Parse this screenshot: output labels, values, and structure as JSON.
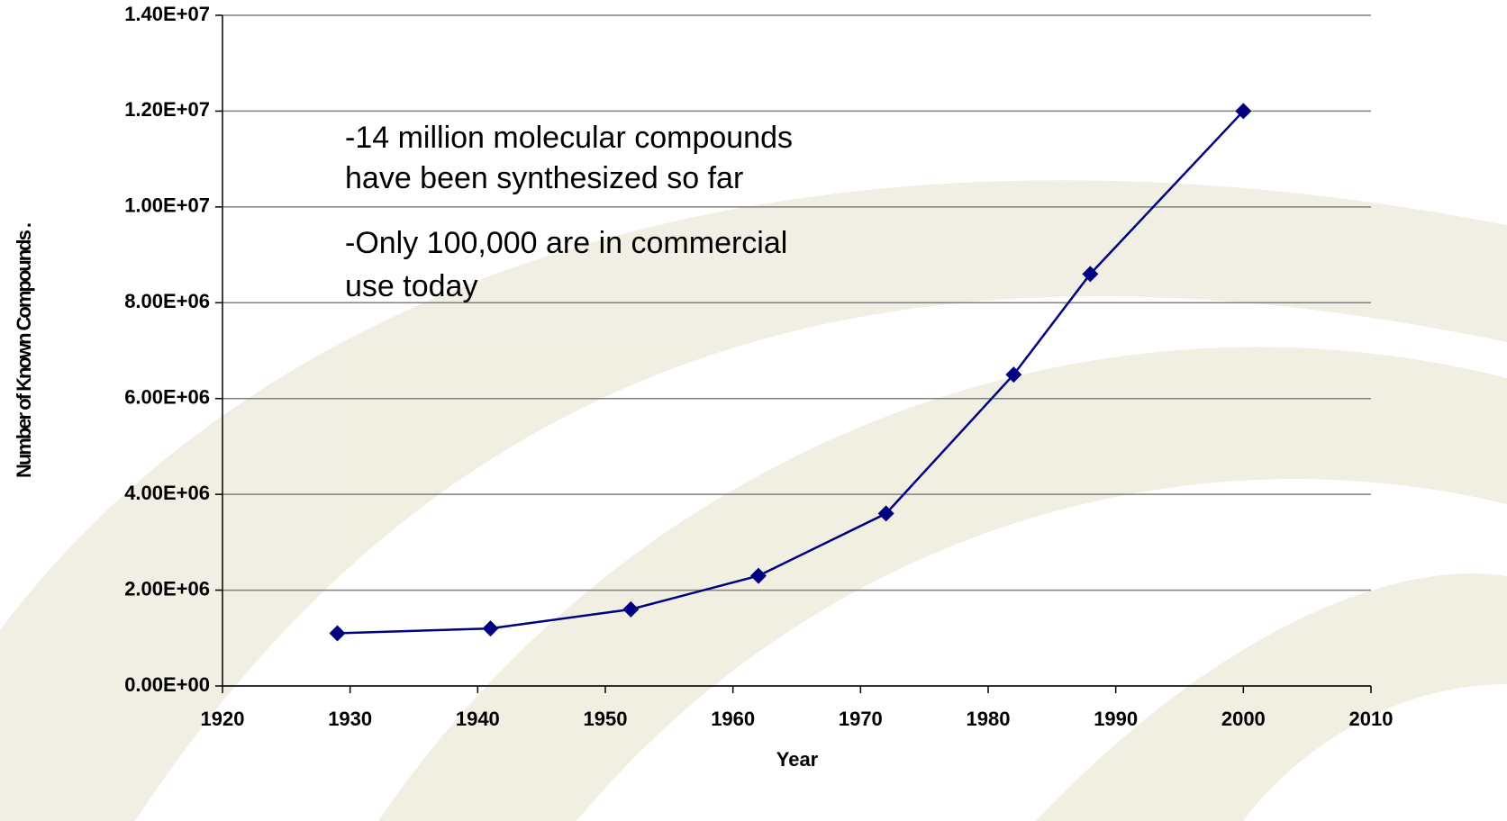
{
  "chart_data": {
    "type": "line",
    "x_label": "Year",
    "y_label": "Number of Known Compounds .",
    "annotations": [
      "-14 million molecular compounds",
      "have been synthesized so far",
      "-Only 100,000 are in commercial",
      "use today"
    ],
    "x": [
      1929,
      1941,
      1952,
      1962,
      1972,
      1982,
      1988,
      2000
    ],
    "series": [
      {
        "color": "#000080",
        "values": [
          1100000,
          1200000,
          1600000,
          2300000,
          3600000,
          6500000,
          8600000,
          12000000
        ]
      }
    ],
    "xlim": [
      1920,
      2010
    ],
    "xticks": [
      1920,
      1930,
      1940,
      1950,
      1960,
      1970,
      1980,
      1990,
      2000,
      2010
    ],
    "ylim": [
      0,
      14000000
    ],
    "yticks": [
      {
        "value": 0,
        "label": "0.00E+00"
      },
      {
        "value": 2000000,
        "label": "2.00E+06"
      },
      {
        "value": 4000000,
        "label": "4.00E+06"
      },
      {
        "value": 6000000,
        "label": "6.00E+06"
      },
      {
        "value": 8000000,
        "label": "8.00E+06"
      },
      {
        "value": 10000000,
        "label": "1.00E+07"
      },
      {
        "value": 12000000,
        "label": "1.20E+07"
      },
      {
        "value": 14000000,
        "label": "1.40E+07"
      }
    ],
    "grid": true
  }
}
